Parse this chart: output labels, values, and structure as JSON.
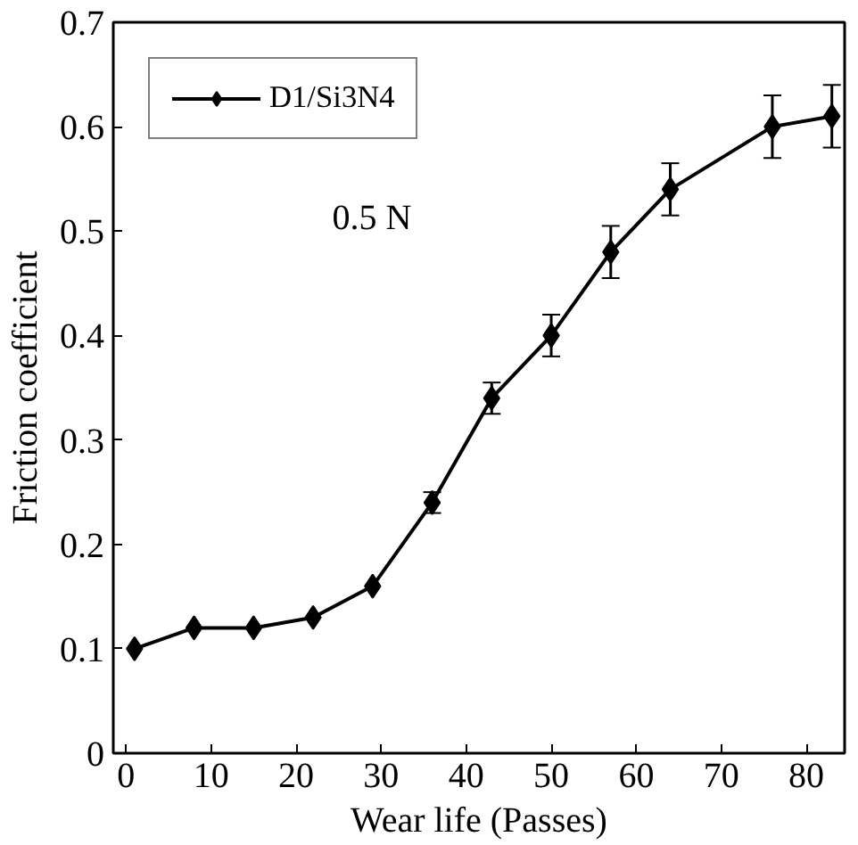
{
  "chart_data": {
    "type": "line",
    "xlabel": "Wear life (Passes)",
    "ylabel": "Friction coefficient",
    "x": [
      1,
      8,
      15,
      22,
      29,
      36,
      43,
      50,
      57,
      64,
      76,
      83
    ],
    "series": [
      {
        "name": "D1/Si3N4",
        "color": "#000000",
        "values": [
          0.1,
          0.12,
          0.12,
          0.13,
          0.16,
          0.24,
          0.34,
          0.4,
          0.48,
          0.54,
          0.6,
          0.61
        ],
        "errors": [
          null,
          null,
          null,
          null,
          null,
          0.01,
          0.015,
          0.02,
          0.025,
          0.025,
          0.03,
          0.03
        ]
      }
    ],
    "xlim": [
      -1.5,
      84.5
    ],
    "xticks": [
      0,
      10,
      20,
      30,
      40,
      50,
      60,
      70,
      80
    ],
    "ylim": [
      0,
      0.7
    ],
    "yticks": [
      0,
      0.1,
      0.2,
      0.3,
      0.4,
      0.5,
      0.6,
      0.7
    ],
    "marker": "diamond",
    "line_style": "solid",
    "grid": false,
    "legend": "top left",
    "annotations": [
      "0.5 N"
    ]
  }
}
